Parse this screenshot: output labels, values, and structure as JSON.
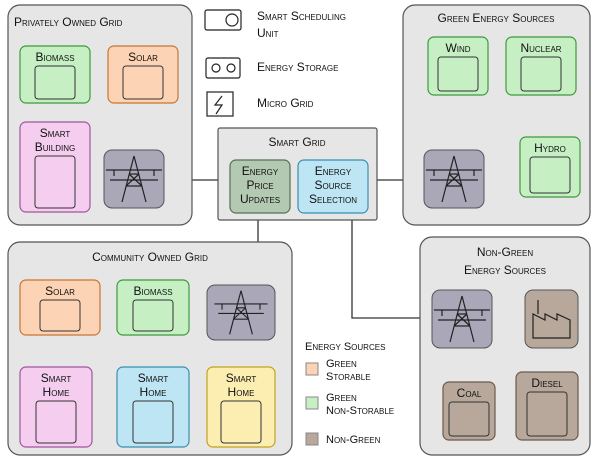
{
  "top_legend": {
    "items": [
      {
        "label": [
          "Smart Scheduling",
          "Unit"
        ]
      },
      {
        "label": [
          "Energy Storage"
        ]
      },
      {
        "label": [
          "Micro Grid"
        ]
      }
    ]
  },
  "privately_owned_grid": {
    "title": "Privately Owned Grid",
    "nodes": [
      {
        "label": [
          "Biomass"
        ]
      },
      {
        "label": [
          "Solar"
        ]
      },
      {
        "label": [
          "Smart",
          "Building"
        ]
      }
    ]
  },
  "green_energy_sources": {
    "title": "Green Energy Sources",
    "nodes": [
      {
        "label": [
          "Wind"
        ]
      },
      {
        "label": [
          "Nuclear"
        ]
      },
      {
        "label": [
          "Hydro"
        ]
      }
    ]
  },
  "smart_grid": {
    "title": "Smart Grid",
    "nodes": [
      {
        "label": [
          "Energy",
          "Price",
          "Updates"
        ]
      },
      {
        "label": [
          "Energy",
          "Source",
          "Selection"
        ]
      }
    ]
  },
  "community_owned_grid": {
    "title": "Community Owned Grid",
    "nodes": [
      {
        "label": [
          "Solar"
        ]
      },
      {
        "label": [
          "Biomass"
        ]
      },
      {
        "label": [
          "Smart",
          "Home"
        ]
      },
      {
        "label": [
          "Smart",
          "Home"
        ]
      },
      {
        "label": [
          "Smart",
          "Home"
        ]
      }
    ]
  },
  "non_green_energy_sources": {
    "title": [
      "Non-Green",
      "Energy Sources"
    ],
    "nodes": [
      {
        "label": [
          "Coal"
        ]
      },
      {
        "label": [
          "Diesel"
        ]
      }
    ]
  },
  "energy_legend": {
    "title": "Energy Sources",
    "items": [
      {
        "label": [
          "Green",
          "Storable"
        ]
      },
      {
        "label": [
          "Green",
          "Non-Storable"
        ]
      },
      {
        "label": [
          "Non-Green"
        ]
      }
    ]
  }
}
